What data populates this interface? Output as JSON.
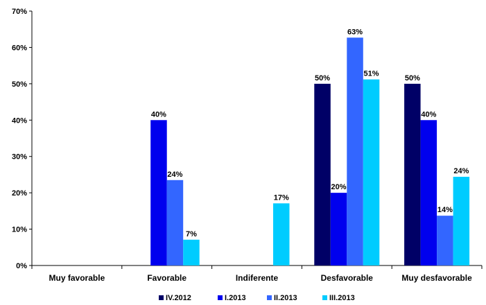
{
  "chart_data": {
    "type": "bar",
    "categories": [
      "Muy favorable",
      "Favorable",
      "Indiferente",
      "Desfavorable",
      "Muy desfavorable"
    ],
    "series": [
      {
        "name": "IV.2012",
        "color": "#000066",
        "values": [
          0,
          0,
          0,
          50,
          50
        ],
        "labels": [
          "",
          "",
          "",
          "50%",
          "50%"
        ]
      },
      {
        "name": "I.2013",
        "color": "#0000ee",
        "values": [
          0,
          40,
          0,
          20,
          40
        ],
        "labels": [
          "",
          "40%",
          "",
          "20%",
          "40%"
        ]
      },
      {
        "name": "II.2013",
        "color": "#3366ff",
        "values": [
          0,
          23.5,
          0,
          62.7,
          13.7
        ],
        "labels": [
          "",
          "24%",
          "",
          "63%",
          "14%"
        ]
      },
      {
        "name": "III.2013",
        "color": "#00ccff",
        "values": [
          0,
          7.1,
          17.1,
          51.2,
          24.4
        ],
        "labels": [
          "",
          "7%",
          "17%",
          "51%",
          "24%"
        ]
      }
    ],
    "yticks": [
      "0%",
      "10%",
      "20%",
      "30%",
      "40%",
      "50%",
      "60%",
      "70%"
    ],
    "ylim": [
      0,
      70
    ],
    "legend_position": "bottom",
    "grid": false
  }
}
